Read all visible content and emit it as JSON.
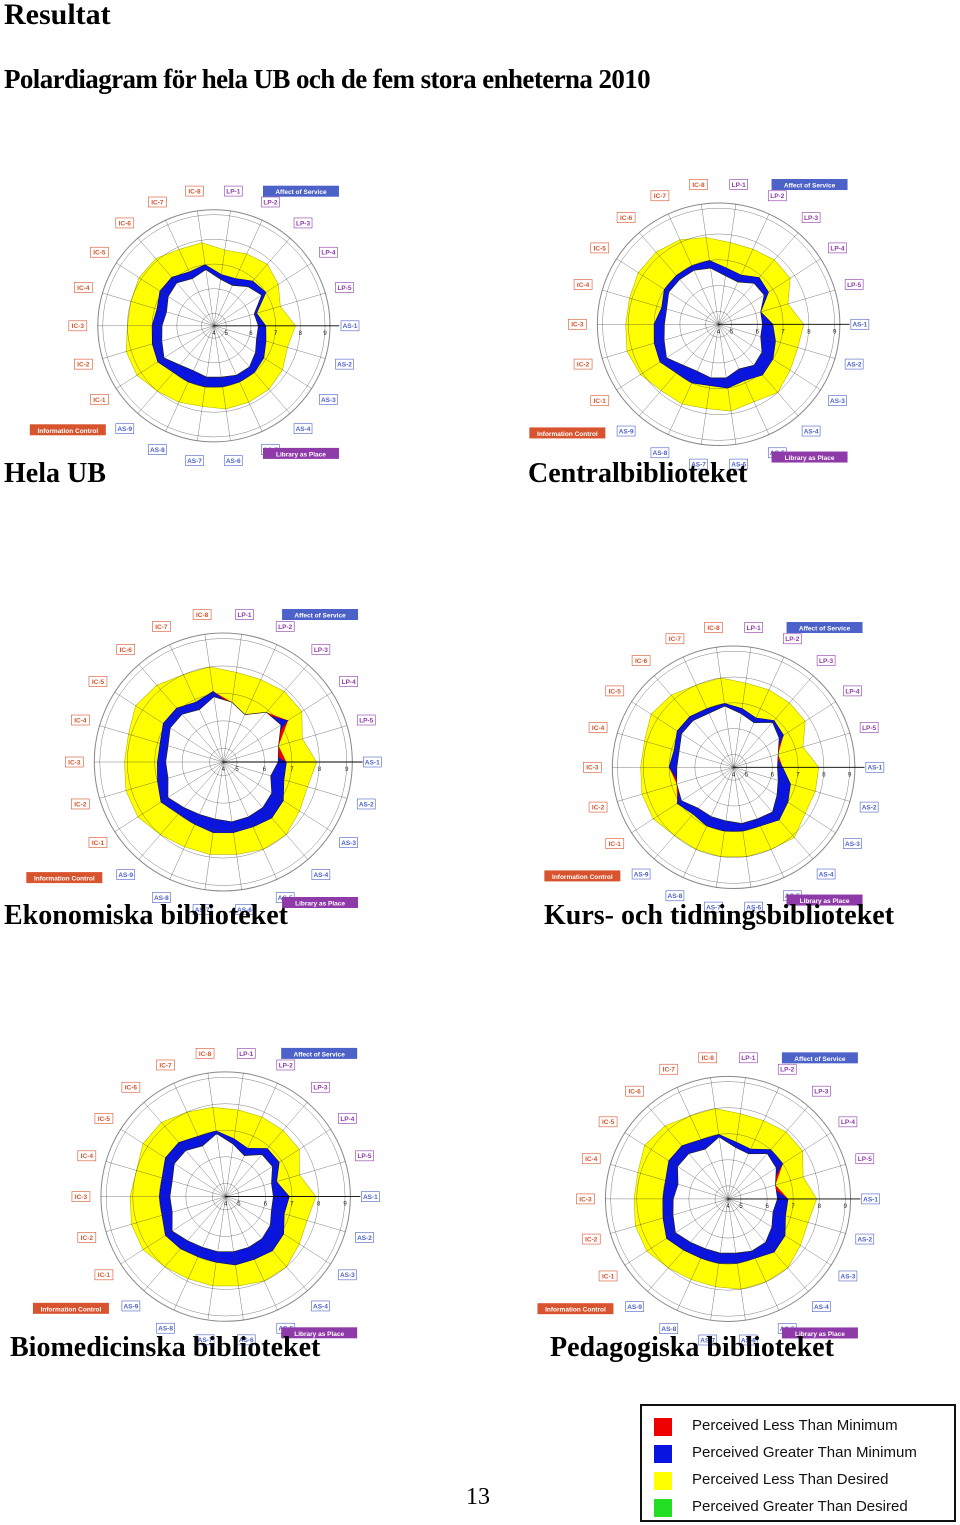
{
  "heading": "Resultat",
  "subheading": "Polardiagram för hela UB och de fem stora enheterna 2010",
  "page_number": "13",
  "colors": {
    "red": "#ee0000",
    "blue": "#0a14e0",
    "yellow": "#ffff00",
    "green": "#22dd22",
    "group_affect": "#4d62c8",
    "group_info": "#d8542e",
    "group_place": "#8e3aa8"
  },
  "dimension_labels": [
    "AS-1",
    "AS-2",
    "AS-3",
    "AS-4",
    "AS-5",
    "AS-6",
    "AS-7",
    "AS-8",
    "AS-9",
    "IC-1",
    "IC-2",
    "IC-3",
    "IC-4",
    "IC-5",
    "IC-6",
    "IC-7",
    "IC-8",
    "LP-1",
    "LP-2",
    "LP-3",
    "LP-4",
    "LP-5"
  ],
  "group_labels": {
    "affect": "Affect of Service",
    "info": "Information Control",
    "place": "Library as Place"
  },
  "scale_ticks": [
    "4",
    "5",
    "6",
    "7",
    "8",
    "9"
  ],
  "legend": [
    {
      "label": "Perceived Less Than Minimum",
      "color": "#ee0000"
    },
    {
      "label": "Perceived Greater Than Minimum",
      "color": "#0a14e0"
    },
    {
      "label": "Perceived Less Than Desired",
      "color": "#ffff00"
    },
    {
      "label": "Perceived Greater Than Desired",
      "color": "#22dd22"
    }
  ],
  "chart_data": [
    {
      "type": "radar",
      "caption": "Hela UB",
      "minimum": [
        6.3,
        6.3,
        6.5,
        6.7,
        6.7,
        6.6,
        6.6,
        6.5,
        6.6,
        6.9,
        6.7,
        6.6,
        6.5,
        6.7,
        6.8,
        6.6,
        6.8,
        6.4,
        6.3,
        6.6,
        6.8,
        6.2
      ],
      "perceived": [
        6.6,
        6.7,
        6.9,
        7.0,
        7.0,
        7.0,
        7.0,
        7.0,
        7.0,
        7.2,
        7.1,
        7.0,
        6.9,
        7.1,
        7.1,
        6.9,
        7.0,
        6.6,
        6.6,
        6.9,
        7.0,
        6.3
      ],
      "desired": [
        7.8,
        7.6,
        7.8,
        7.9,
        7.9,
        7.9,
        7.8,
        7.9,
        8.0,
        8.2,
        8.2,
        8.0,
        8.0,
        8.1,
        8.1,
        7.9,
        7.9,
        7.6,
        7.7,
        7.8,
        7.6,
        7.3
      ]
    },
    {
      "type": "radar",
      "caption": "Centralbiblioteket",
      "minimum": [
        6.2,
        6.2,
        6.5,
        6.6,
        6.4,
        6.6,
        6.6,
        6.5,
        6.6,
        6.9,
        6.7,
        6.6,
        6.6,
        6.8,
        6.8,
        6.8,
        6.7,
        6.4,
        6.3,
        6.6,
        6.6,
        6.2
      ],
      "perceived": [
        6.6,
        6.8,
        7.0,
        7.1,
        6.9,
        7.0,
        6.9,
        7.0,
        7.0,
        7.2,
        7.1,
        7.0,
        6.8,
        7.0,
        7.0,
        7.0,
        7.0,
        6.7,
        6.6,
        6.9,
        6.8,
        6.2
      ],
      "desired": [
        7.8,
        7.7,
        7.8,
        8.0,
        7.8,
        7.9,
        7.8,
        7.9,
        7.9,
        8.1,
        8.2,
        8.1,
        8.1,
        8.2,
        8.2,
        8.1,
        7.9,
        7.7,
        7.7,
        7.8,
        7.8,
        7.3
      ]
    },
    {
      "type": "radar",
      "caption": "Ekonomiska biblioteket",
      "minimum": [
        6.5,
        6.3,
        6.6,
        6.7,
        6.7,
        6.7,
        6.6,
        6.6,
        6.7,
        6.9,
        6.6,
        6.6,
        6.6,
        6.8,
        6.8,
        6.6,
        6.9,
        6.7,
        6.4,
        6.9,
        7.0,
        6.6
      ],
      "perceived": [
        6.8,
        6.8,
        7.1,
        7.2,
        7.1,
        7.1,
        7.1,
        7.0,
        7.0,
        7.2,
        7.0,
        6.9,
        6.9,
        7.1,
        7.1,
        6.9,
        7.1,
        6.6,
        6.3,
        6.8,
        7.3,
        6.1
      ],
      "desired": [
        7.9,
        7.7,
        7.8,
        8.0,
        8.0,
        7.9,
        7.9,
        7.9,
        8.0,
        8.2,
        8.2,
        8.1,
        8.1,
        8.3,
        8.2,
        8.0,
        8.0,
        7.8,
        7.8,
        7.9,
        7.9,
        7.5
      ]
    },
    {
      "type": "radar",
      "caption": "Kurs- och tidningsbiblioteket",
      "minimum": [
        6.2,
        6.3,
        6.5,
        6.8,
        6.7,
        6.7,
        6.6,
        6.6,
        6.6,
        6.9,
        6.8,
        6.7,
        6.7,
        6.9,
        6.9,
        6.8,
        6.9,
        6.6,
        6.4,
        6.8,
        6.6,
        6.3
      ],
      "perceived": [
        6.4,
        6.8,
        7.0,
        7.2,
        7.0,
        7.0,
        7.0,
        7.0,
        6.9,
        7.1,
        6.7,
        7.0,
        6.9,
        7.1,
        7.1,
        7.0,
        7.0,
        6.8,
        6.6,
        6.9,
        6.8,
        6.2
      ],
      "desired": [
        7.8,
        7.8,
        7.8,
        8.1,
        8.0,
        8.0,
        8.0,
        8.0,
        8.0,
        8.2,
        8.2,
        8.1,
        8.1,
        8.3,
        8.2,
        8.0,
        8.0,
        7.8,
        7.8,
        7.8,
        7.8,
        7.3
      ]
    },
    {
      "type": "radar",
      "caption": "Biomedicinska biblioteket",
      "minimum": [
        6.3,
        6.3,
        6.5,
        6.6,
        6.6,
        6.6,
        6.6,
        6.6,
        6.7,
        6.9,
        6.6,
        6.6,
        6.6,
        6.8,
        6.8,
        6.6,
        6.9,
        6.5,
        6.2,
        6.6,
        6.6,
        6.3
      ],
      "perceived": [
        6.9,
        6.8,
        7.1,
        7.2,
        7.1,
        7.1,
        7.0,
        7.0,
        7.1,
        7.2,
        7.0,
        7.0,
        7.0,
        7.2,
        7.2,
        7.0,
        7.0,
        6.7,
        6.5,
        6.9,
        6.9,
        6.5
      ],
      "desired": [
        7.9,
        7.7,
        7.8,
        8.0,
        8.0,
        7.9,
        7.9,
        7.9,
        8.0,
        8.2,
        8.2,
        8.1,
        8.0,
        8.2,
        8.2,
        8.0,
        7.9,
        7.8,
        7.8,
        7.8,
        7.8,
        7.4
      ]
    },
    {
      "type": "radar",
      "caption": "Pedagogiska biblioteket",
      "minimum": [
        6.4,
        6.3,
        6.5,
        6.7,
        6.7,
        6.6,
        6.6,
        6.6,
        6.7,
        6.9,
        6.7,
        6.6,
        6.5,
        6.8,
        6.8,
        6.6,
        6.9,
        6.5,
        6.4,
        6.8,
        6.7,
        6.4
      ],
      "perceived": [
        6.8,
        6.8,
        7.1,
        7.2,
        7.0,
        7.0,
        7.0,
        7.0,
        7.1,
        7.3,
        7.1,
        7.0,
        7.0,
        7.2,
        7.2,
        7.0,
        7.0,
        6.7,
        6.6,
        7.0,
        7.0,
        6.2
      ],
      "desired": [
        7.9,
        7.7,
        7.8,
        8.0,
        8.0,
        8.0,
        7.9,
        7.9,
        8.0,
        8.2,
        8.2,
        8.1,
        8.1,
        8.3,
        8.2,
        8.0,
        8.0,
        7.8,
        7.8,
        7.9,
        7.9,
        7.5
      ]
    }
  ]
}
